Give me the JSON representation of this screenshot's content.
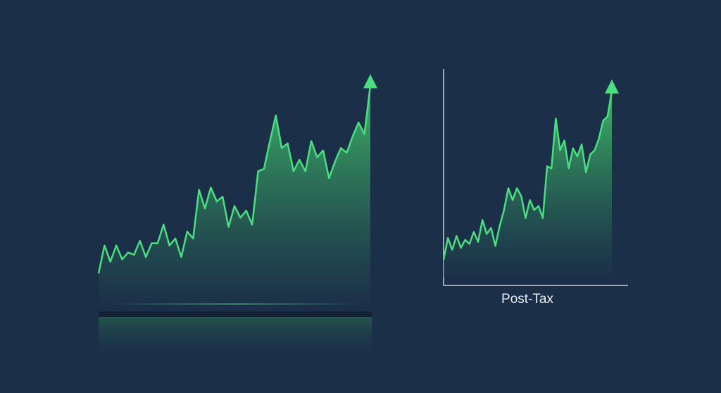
{
  "chart_data": [
    {
      "type": "area",
      "color": "#4ade80",
      "ylim": [
        0,
        100
      ],
      "values": [
        14,
        26,
        19,
        26,
        20,
        23,
        22,
        28,
        21,
        27,
        27,
        35,
        26,
        29,
        21,
        32,
        29,
        50,
        42,
        51,
        45,
        47,
        34,
        43,
        38,
        41,
        35,
        58,
        59,
        71,
        82,
        68,
        70,
        58,
        63,
        58,
        71,
        64,
        67,
        55,
        62,
        68,
        66,
        73,
        79,
        74,
        95
      ]
    },
    {
      "type": "area",
      "color": "#4ade80",
      "ylim": [
        0,
        100
      ],
      "x_label": "Post-Tax",
      "values": [
        9,
        20,
        14,
        21,
        15,
        19,
        17,
        23,
        18,
        29,
        22,
        25,
        16,
        26,
        34,
        45,
        39,
        45,
        41,
        30,
        39,
        34,
        36,
        30,
        56,
        55,
        80,
        64,
        69,
        55,
        65,
        61,
        67,
        53,
        62,
        64,
        70,
        79,
        81,
        94
      ]
    }
  ]
}
